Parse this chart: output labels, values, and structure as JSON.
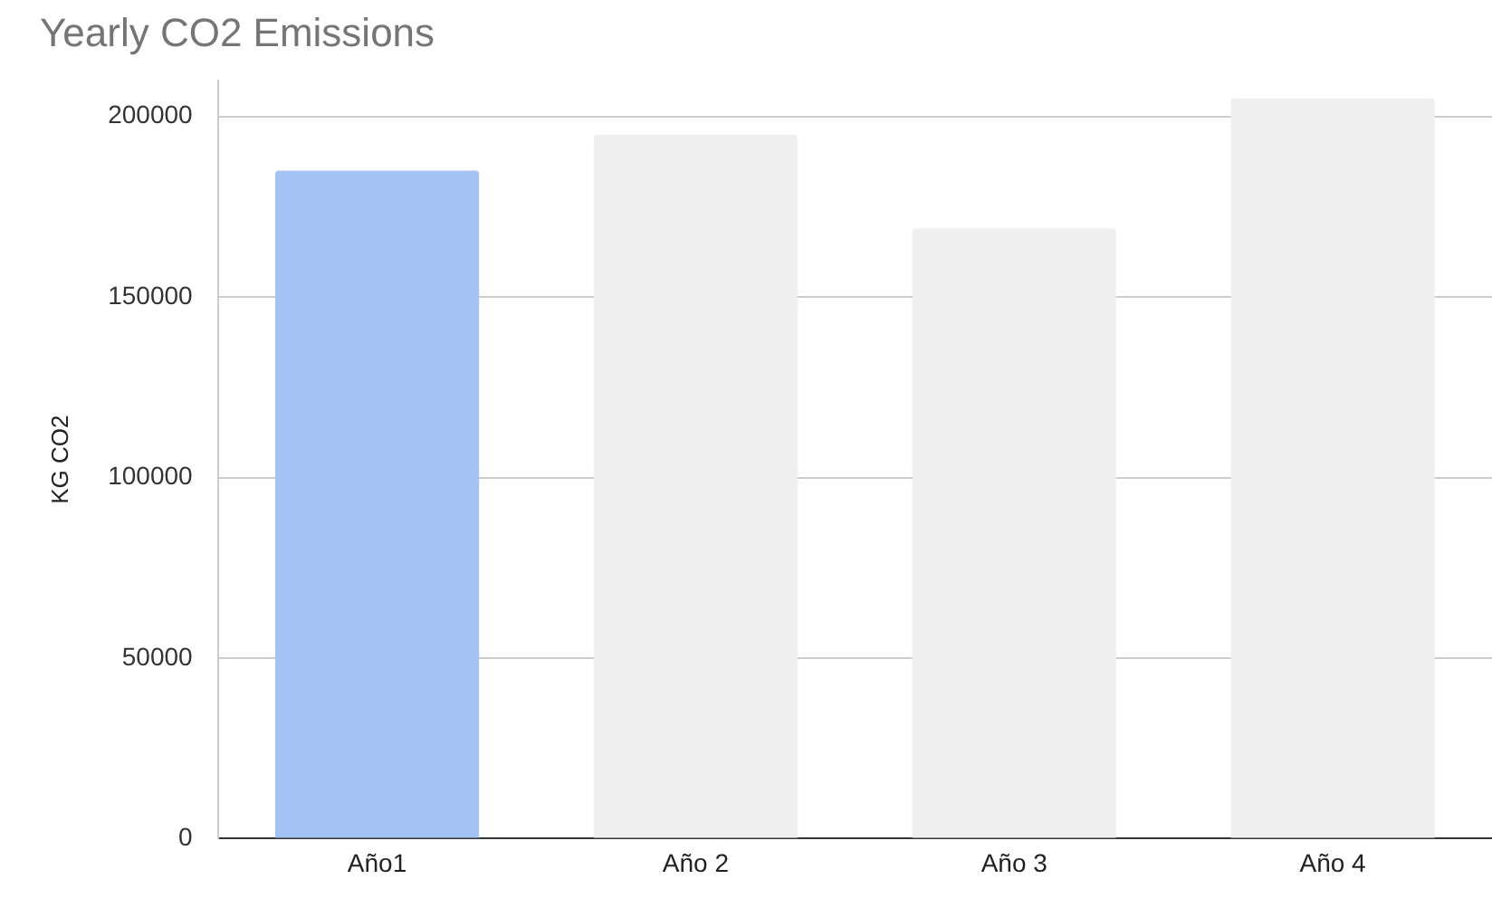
{
  "chart_data": {
    "type": "bar",
    "title": "Yearly CO2 Emissions",
    "ylabel": "KG CO2",
    "categories": [
      "Año1",
      "Año 2",
      "Año 3",
      "Año 4"
    ],
    "values": [
      185000,
      195000,
      169000,
      205000
    ],
    "colors": [
      "#a4c2f4",
      "#efefef",
      "#efefef",
      "#efefef"
    ],
    "ylim": [
      0,
      210000
    ],
    "yticks": [
      0,
      50000,
      100000,
      150000,
      200000
    ],
    "grid": "y"
  }
}
